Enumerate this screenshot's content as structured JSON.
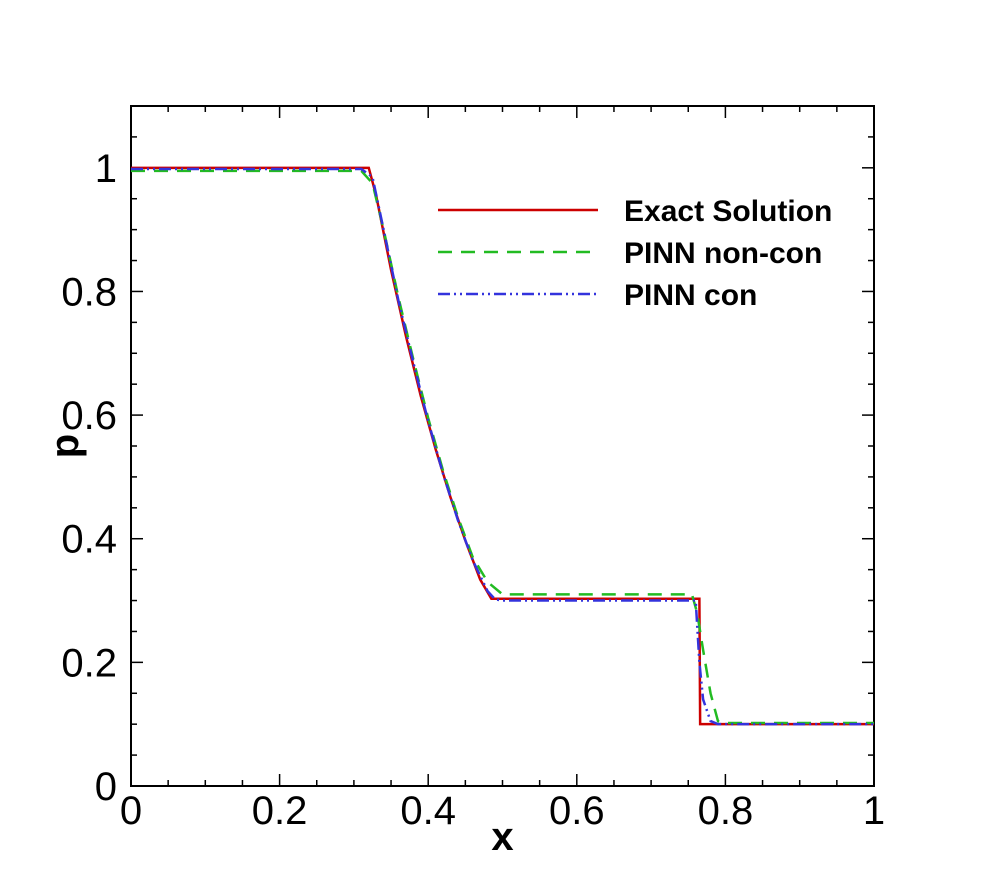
{
  "chart_data": {
    "type": "line",
    "title": "",
    "xlabel": "x",
    "ylabel": "p",
    "xlim": [
      0,
      1
    ],
    "ylim": [
      0,
      1.1
    ],
    "xticks": [
      0,
      0.2,
      0.4,
      0.6,
      0.8,
      1
    ],
    "xtick_labels": [
      "0",
      "0.2",
      "0.4",
      "0.6",
      "0.8",
      "1"
    ],
    "yticks": [
      0,
      0.2,
      0.4,
      0.6,
      0.8,
      1
    ],
    "ytick_labels": [
      "0",
      "0.2",
      "0.4",
      "0.6",
      "0.8",
      "1"
    ],
    "grid": false,
    "legend_position": "top-right",
    "series": [
      {
        "name": "Exact Solution",
        "color": "#cc0000",
        "dash": "solid",
        "x": [
          0,
          0.32,
          0.33,
          0.35,
          0.37,
          0.39,
          0.41,
          0.43,
          0.45,
          0.47,
          0.485,
          0.5,
          0.6,
          0.7,
          0.765,
          0.766,
          0.8,
          1
        ],
        "y": [
          1,
          1,
          0.955,
          0.835,
          0.728,
          0.631,
          0.545,
          0.467,
          0.397,
          0.334,
          0.303,
          0.303,
          0.303,
          0.303,
          0.303,
          0.1,
          0.1,
          0.1
        ]
      },
      {
        "name": "PINN non-con",
        "color": "#22bb22",
        "dash": "dashed",
        "x": [
          0,
          0.31,
          0.325,
          0.34,
          0.36,
          0.38,
          0.4,
          0.42,
          0.44,
          0.46,
          0.48,
          0.5,
          0.6,
          0.7,
          0.755,
          0.762,
          0.77,
          0.78,
          0.79,
          0.8,
          1
        ],
        "y": [
          0.995,
          0.995,
          0.975,
          0.9,
          0.79,
          0.69,
          0.595,
          0.51,
          0.435,
          0.37,
          0.33,
          0.31,
          0.31,
          0.31,
          0.31,
          0.28,
          0.22,
          0.15,
          0.105,
          0.102,
          0.102
        ]
      },
      {
        "name": "PINN con",
        "color": "#3333dd",
        "dash": "dash-dot-dot",
        "x": [
          0,
          0.31,
          0.325,
          0.34,
          0.36,
          0.38,
          0.4,
          0.42,
          0.44,
          0.46,
          0.48,
          0.49,
          0.5,
          0.6,
          0.7,
          0.76,
          0.765,
          0.77,
          0.78,
          0.79,
          1
        ],
        "y": [
          0.998,
          0.998,
          0.985,
          0.9,
          0.785,
          0.685,
          0.59,
          0.505,
          0.43,
          0.365,
          0.315,
          0.302,
          0.3,
          0.3,
          0.3,
          0.3,
          0.2,
          0.14,
          0.105,
          0.1,
          0.1
        ]
      }
    ]
  }
}
